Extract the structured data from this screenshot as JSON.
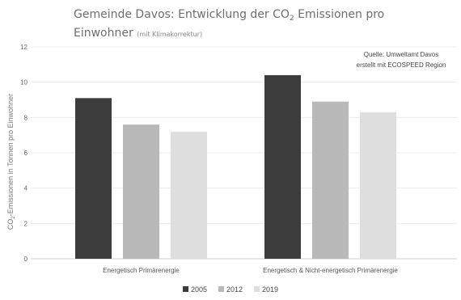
{
  "chart_data": {
    "type": "bar",
    "title_main": "Gemeinde Davos: Entwicklung der CO",
    "title_sub2": "2",
    "title_rest": " Emissionen pro",
    "title_line2": "Einwohner",
    "title_note": "(mit Klimakorrektur)",
    "ylabel_prefix": "CO",
    "ylabel_sub": "2",
    "ylabel_rest": "-Emissionen in Tonnen pro Einwohner",
    "xlabel": "",
    "ylim": [
      0,
      12
    ],
    "yticks": [
      "0",
      "2",
      "4",
      "6",
      "8",
      "10",
      "12"
    ],
    "categories": [
      "Energetisch Primärenergie",
      "Energetisch & Nicht-energetisch Primärenergie"
    ],
    "series": [
      {
        "name": "2005",
        "color": "#3c3c3c",
        "values": [
          9.1,
          10.4
        ]
      },
      {
        "name": "2012",
        "color": "#b9b9b9",
        "values": [
          7.6,
          8.9
        ]
      },
      {
        "name": "2019",
        "color": "#dedede",
        "values": [
          7.2,
          8.3
        ]
      }
    ],
    "source_lines": [
      "Quelle: Umweltamt Davos",
      "erstellt mit ECOSPEED Region"
    ],
    "grid": true,
    "legend_position": "bottom"
  }
}
